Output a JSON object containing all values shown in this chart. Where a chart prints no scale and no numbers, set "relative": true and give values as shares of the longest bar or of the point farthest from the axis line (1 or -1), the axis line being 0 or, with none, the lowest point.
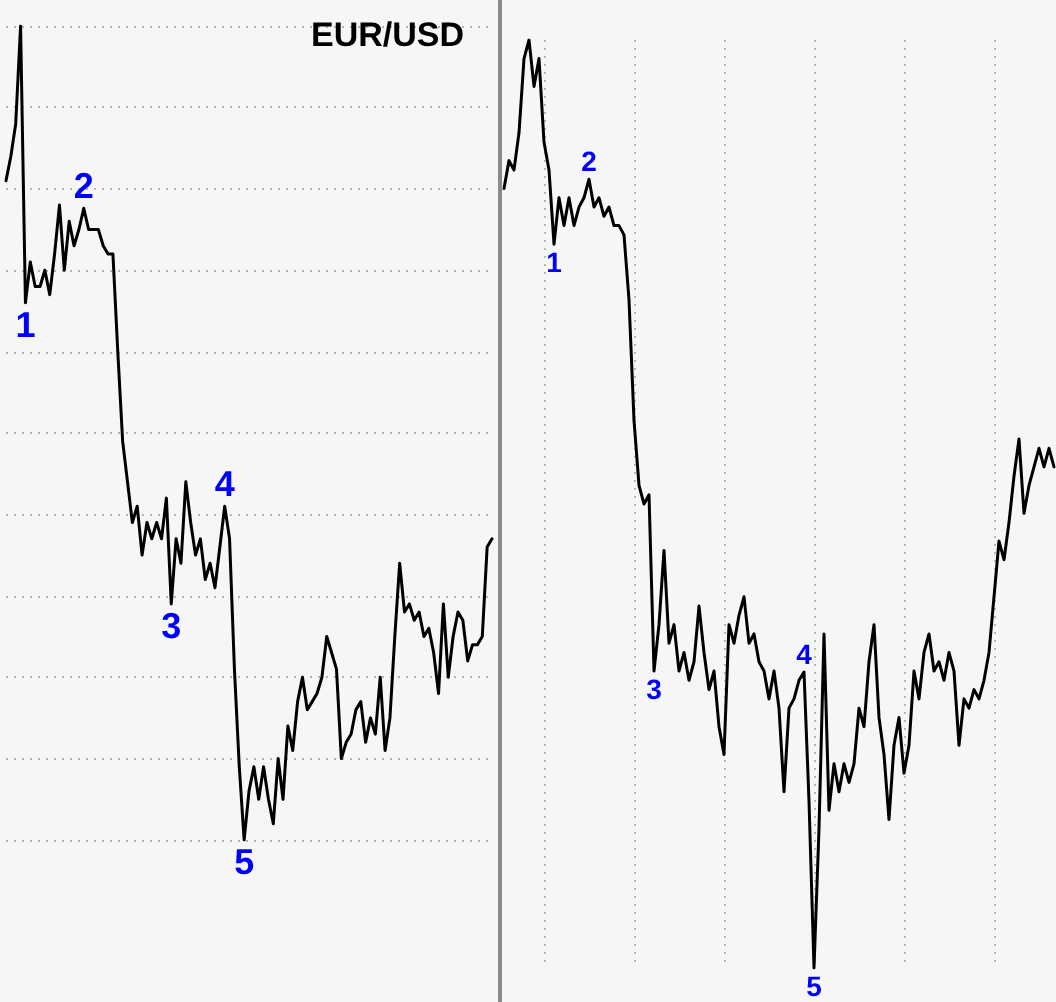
{
  "chart_data": [
    {
      "type": "line",
      "title": "EUR/USD",
      "color": "#000000",
      "relative": true,
      "grid": "y",
      "categories": [
        null,
        null,
        null,
        null,
        null,
        null,
        null,
        null,
        null,
        null,
        null,
        null,
        null,
        null,
        null,
        null,
        null,
        null,
        null,
        null,
        null,
        null,
        null,
        null,
        null,
        null,
        null,
        null,
        null,
        null,
        null,
        null,
        null,
        null,
        null,
        null,
        null,
        null,
        null,
        null,
        null,
        null,
        null,
        null,
        null,
        null,
        null,
        null,
        null,
        null,
        null,
        null,
        null,
        null,
        null,
        null,
        null,
        null,
        null,
        null,
        null,
        null,
        null,
        null,
        null,
        null,
        null,
        null,
        null,
        null,
        null,
        null,
        null,
        null,
        null,
        null,
        null,
        null,
        null,
        null,
        null,
        null,
        null,
        null,
        null,
        null,
        null,
        null,
        null,
        null,
        null,
        null,
        null,
        null,
        null,
        null,
        null,
        null,
        null,
        null,
        null
      ],
      "values": [
        0.81,
        0.84,
        0.88,
        1,
        0.66,
        0.71,
        0.68,
        0.68,
        0.7,
        0.67,
        0.72,
        0.78,
        0.7,
        0.76,
        0.73,
        0.75,
        0.776,
        0.75,
        0.75,
        0.75,
        0.73,
        0.72,
        0.72,
        0.6,
        0.49,
        0.44,
        0.39,
        0.41,
        0.35,
        0.39,
        0.37,
        0.39,
        0.37,
        0.42,
        0.29,
        0.37,
        0.34,
        0.44,
        0.39,
        0.35,
        0.37,
        0.32,
        0.34,
        0.31,
        0.36,
        0.41,
        0.37,
        0.21,
        0.09,
        0,
        0.06,
        0.09,
        0.05,
        0.09,
        0.05,
        0.02,
        0.1,
        0.05,
        0.14,
        0.11,
        0.17,
        0.2,
        0.16,
        0.17,
        0.18,
        0.2,
        0.25,
        0.23,
        0.21,
        0.1,
        0.12,
        0.13,
        0.16,
        0.17,
        0.12,
        0.15,
        0.13,
        0.2,
        0.11,
        0.15,
        0.25,
        0.34,
        0.28,
        0.29,
        0.27,
        0.28,
        0.25,
        0.26,
        0.23,
        0.18,
        0.29,
        0.2,
        0.25,
        0.28,
        0.27,
        0.22,
        0.24,
        0.24,
        0.25,
        0.36,
        0.37
      ],
      "annotations": [
        {
          "text": "1",
          "y": 0.66
        },
        {
          "text": "2",
          "y": 0.776
        },
        {
          "text": "3",
          "y": 0.29
        },
        {
          "text": "4",
          "y": 0.41
        },
        {
          "text": "5",
          "y": 0
        }
      ]
    },
    {
      "type": "line",
      "color": "#000000",
      "relative": true,
      "grid": "x",
      "categories": [
        null,
        null,
        null,
        null,
        null,
        null,
        null,
        null,
        null,
        null,
        null,
        null,
        null,
        null,
        null,
        null,
        null,
        null,
        null,
        null,
        null,
        null,
        null,
        null,
        null,
        null,
        null,
        null,
        null,
        null,
        null,
        null,
        null,
        null,
        null,
        null,
        null,
        null,
        null,
        null,
        null,
        null,
        null,
        null,
        null,
        null,
        null,
        null,
        null,
        null,
        null,
        null,
        null,
        null,
        null,
        null,
        null,
        null,
        null,
        null,
        null,
        null,
        null,
        null,
        null,
        null,
        null,
        null,
        null,
        null,
        null,
        null,
        null,
        null,
        null,
        null,
        null,
        null,
        null,
        null,
        null,
        null,
        null,
        null,
        null,
        null,
        null,
        null,
        null,
        null,
        null,
        null,
        null,
        null,
        null,
        null,
        null,
        null,
        null,
        null,
        null,
        null,
        null,
        null,
        null,
        null,
        null,
        null,
        null,
        null,
        null
      ],
      "values": [
        0.84,
        0.87,
        0.86,
        0.9,
        0.98,
        1,
        0.95,
        0.98,
        0.89,
        0.86,
        0.78,
        0.83,
        0.8,
        0.83,
        0.8,
        0.82,
        0.83,
        0.85,
        0.82,
        0.83,
        0.81,
        0.82,
        0.8,
        0.8,
        0.79,
        0.72,
        0.59,
        0.52,
        0.5,
        0.51,
        0.32,
        0.37,
        0.45,
        0.35,
        0.37,
        0.32,
        0.34,
        0.31,
        0.33,
        0.39,
        0.34,
        0.3,
        0.32,
        0.26,
        0.23,
        0.37,
        0.35,
        0.38,
        0.4,
        0.35,
        0.36,
        0.33,
        0.32,
        0.29,
        0.32,
        0.28,
        0.19,
        0.28,
        0.29,
        0.31,
        0.319,
        0.18,
        0,
        0.15,
        0.36,
        0.17,
        0.22,
        0.19,
        0.22,
        0.2,
        0.22,
        0.28,
        0.26,
        0.33,
        0.37,
        0.27,
        0.23,
        0.16,
        0.24,
        0.27,
        0.21,
        0.24,
        0.32,
        0.29,
        0.34,
        0.36,
        0.32,
        0.33,
        0.31,
        0.34,
        0.32,
        0.24,
        0.29,
        0.28,
        0.3,
        0.29,
        0.31,
        0.34,
        0.4,
        0.46,
        0.44,
        0.48,
        0.53,
        0.57,
        0.49,
        0.52,
        0.54,
        0.56,
        0.54,
        0.56,
        0.54
      ],
      "annotations": [
        {
          "text": "1",
          "y": 0.78
        },
        {
          "text": "2",
          "y": 0.85
        },
        {
          "text": "3",
          "y": 0.32
        },
        {
          "text": "4",
          "y": 0.319
        },
        {
          "text": "5",
          "y": 0
        }
      ]
    }
  ]
}
